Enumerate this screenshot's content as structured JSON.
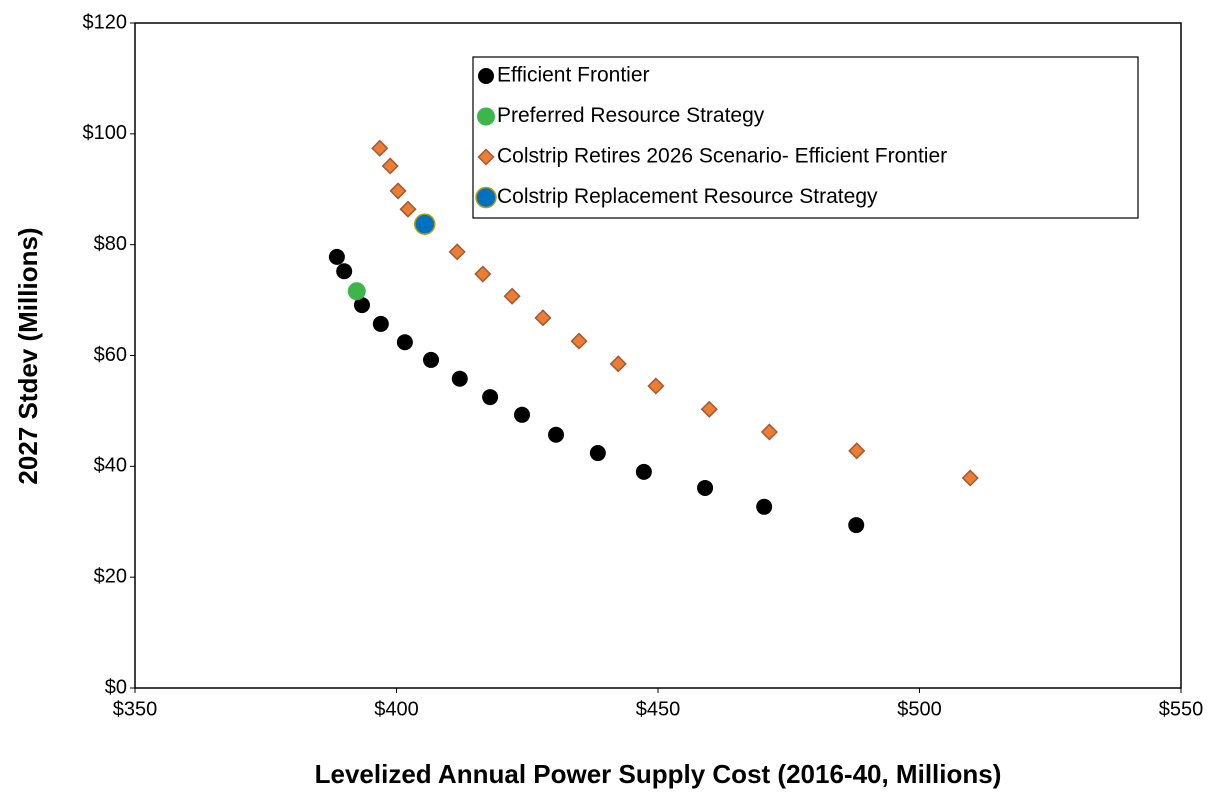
{
  "chart_data": {
    "type": "scatter",
    "xlabel": "Levelized Annual Power Supply Cost (2016-40, Millions)",
    "ylabel": "2027 Stdev (Millions)",
    "xlim": [
      350,
      550
    ],
    "xticks": [
      {
        "value": 350,
        "label": "$350"
      },
      {
        "value": 400,
        "label": "$400"
      },
      {
        "value": 450,
        "label": "$450"
      },
      {
        "value": 500,
        "label": "$500"
      },
      {
        "value": 550,
        "label": "$550"
      }
    ],
    "ylim": [
      0,
      120
    ],
    "yticks": [
      {
        "value": 0,
        "label": "$0"
      },
      {
        "value": 20,
        "label": "$20"
      },
      {
        "value": 40,
        "label": "$40"
      },
      {
        "value": 60,
        "label": "$60"
      },
      {
        "value": 80,
        "label": "$80"
      },
      {
        "value": 100,
        "label": "$100"
      },
      {
        "value": 120,
        "label": "$120"
      }
    ],
    "grid": false,
    "legend": "upper right",
    "series": [
      {
        "name": "Efficient Frontier",
        "color": "#000000",
        "marker": "circle",
        "x": [
          388.6,
          390.0,
          393.4,
          397.0,
          401.6,
          406.6,
          412.1,
          417.9,
          424.0,
          430.5,
          438.5,
          447.3,
          459.0,
          470.3,
          487.9
        ],
        "values": [
          77.8,
          75.2,
          69.1,
          65.7,
          62.4,
          59.2,
          55.8,
          52.5,
          49.3,
          45.7,
          42.4,
          39.0,
          36.1,
          32.7,
          29.4
        ]
      },
      {
        "name": "Preferred Resource Strategy",
        "color": "#3cb54a",
        "marker": "circle",
        "x": [
          392.4
        ],
        "values": [
          71.6
        ]
      },
      {
        "name": "Colstrip Retires 2026 Scenario- Efficient Frontier",
        "color": "#ed7d31",
        "marker": "diamond",
        "x": [
          396.8,
          398.8,
          400.3,
          402.2,
          405.4,
          411.6,
          416.5,
          422.1,
          428.0,
          434.9,
          442.4,
          449.6,
          459.8,
          471.3,
          488.0,
          509.7
        ],
        "values": [
          97.4,
          94.2,
          89.7,
          86.4,
          83.2,
          78.7,
          74.7,
          70.7,
          66.8,
          62.6,
          58.5,
          54.5,
          50.3,
          46.2,
          42.8,
          37.9
        ]
      },
      {
        "name": "Colstrip Replacement Resource Strategy",
        "color": "#0070c0",
        "marker": "circle",
        "x": [
          405.4
        ],
        "values": [
          83.7
        ]
      }
    ]
  }
}
